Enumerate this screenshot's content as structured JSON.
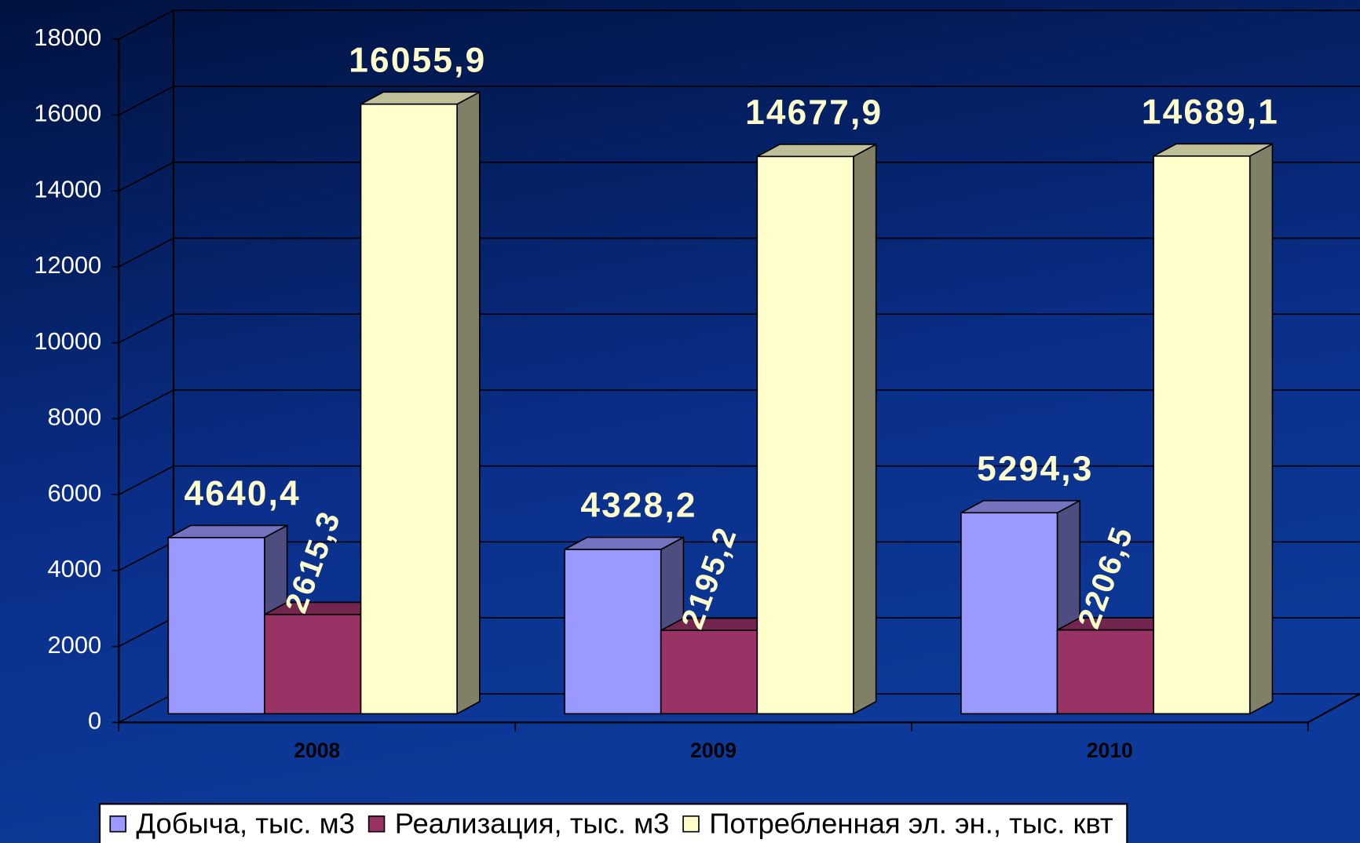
{
  "chart_data": {
    "type": "bar3d",
    "categories": [
      "2008",
      "2009",
      "2010"
    ],
    "series": [
      {
        "name": "Добыча, тыс. м3",
        "color": "#9999ff",
        "values": [
          4640.4,
          4328.2,
          5294.3
        ],
        "value_labels": [
          "4640,4",
          "4328,2",
          "5294,3"
        ]
      },
      {
        "name": "Реализация, тыс. м3",
        "color": "#993366",
        "values": [
          2615.3,
          2195.2,
          2206.5
        ],
        "value_labels": [
          "2615,3",
          "2195,2",
          "2206,5"
        ]
      },
      {
        "name": "Потребленная эл. эн., тыс. квт",
        "color": "#ffffcc",
        "values": [
          16055.9,
          14677.9,
          14689.1
        ],
        "value_labels": [
          "16055,9",
          "14677,9",
          "14689,1"
        ]
      }
    ],
    "ylim": [
      0,
      18000
    ],
    "yticks": [
      0,
      2000,
      4000,
      6000,
      8000,
      10000,
      12000,
      14000,
      16000,
      18000
    ],
    "grid": true,
    "legend": "bottom"
  }
}
